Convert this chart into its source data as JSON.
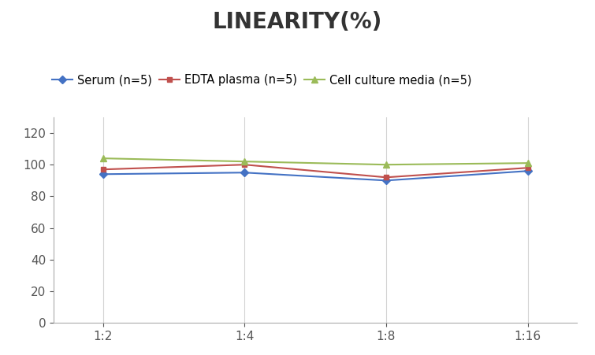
{
  "title": "LINEARITY(%)",
  "title_fontsize": 20,
  "title_fontweight": "bold",
  "x_labels": [
    "1:2",
    "1:4",
    "1:8",
    "1:16"
  ],
  "x_values": [
    0,
    1,
    2,
    3
  ],
  "series": [
    {
      "label": "Serum (n=5)",
      "values": [
        94,
        95,
        90,
        96
      ],
      "color": "#4472C4",
      "marker": "D",
      "markersize": 5
    },
    {
      "label": "EDTA plasma (n=5)",
      "values": [
        97,
        100,
        92,
        98
      ],
      "color": "#C0504D",
      "marker": "s",
      "markersize": 5
    },
    {
      "label": "Cell culture media (n=5)",
      "values": [
        104,
        102,
        100,
        101
      ],
      "color": "#9BBB59",
      "marker": "^",
      "markersize": 6
    }
  ],
  "ylim": [
    0,
    130
  ],
  "yticks": [
    0,
    20,
    40,
    60,
    80,
    100,
    120
  ],
  "grid_color": "#D3D3D3",
  "background_color": "#FFFFFF",
  "legend_fontsize": 10.5,
  "axis_fontsize": 11
}
